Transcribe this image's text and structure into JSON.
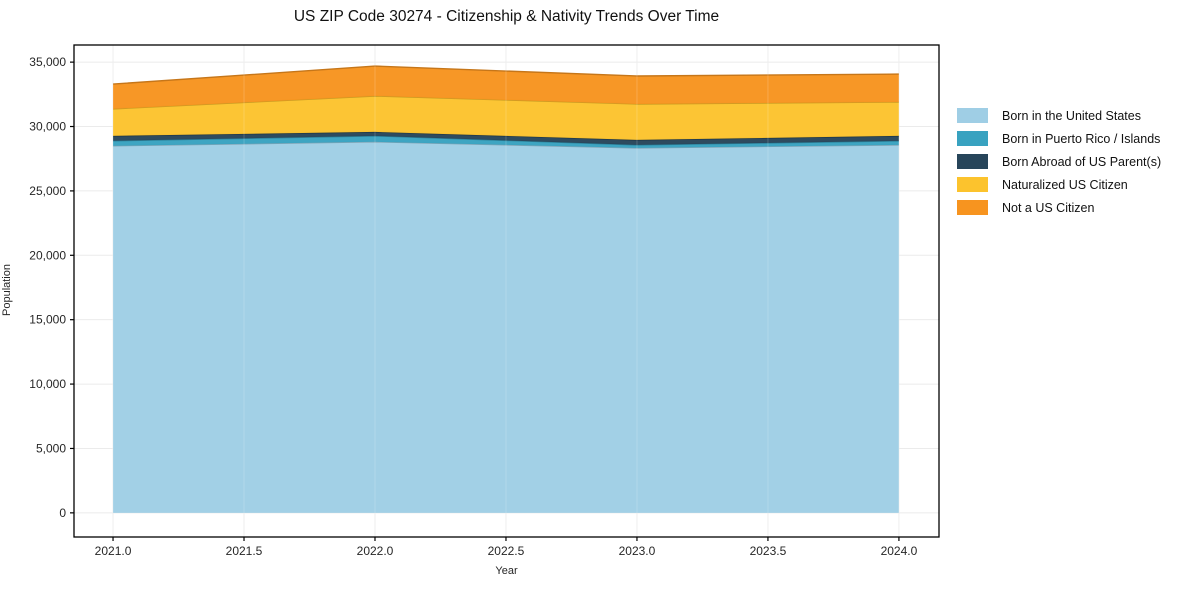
{
  "title": "US ZIP Code 30274 - Citizenship & Nativity Trends Over Time",
  "chart_data": {
    "type": "area",
    "stacked": true,
    "title": "US ZIP Code 30274 - Citizenship & Nativity Trends Over Time",
    "xlabel": "Year",
    "ylabel": "Population",
    "x": [
      2021,
      2022,
      2023,
      2024
    ],
    "series": [
      {
        "name": "Born in the United States",
        "color": "#9FCEE5",
        "values": [
          28500,
          28810,
          28340,
          28570
        ]
      },
      {
        "name": "Born in Puerto Rico / Islands",
        "color": "#38A2C0",
        "values": [
          390,
          460,
          230,
          310
        ]
      },
      {
        "name": "Born Abroad of US Parent(s)",
        "color": "#27455A",
        "values": [
          385,
          310,
          390,
          390
        ]
      },
      {
        "name": "Naturalized US Citizen",
        "color": "#FCC32D",
        "values": [
          2090,
          2790,
          2790,
          2630
        ]
      },
      {
        "name": "Not a US Citizen",
        "color": "#F7941F",
        "values": [
          1930,
          2320,
          2170,
          2170
        ]
      }
    ],
    "totals": [
      33295,
      34690,
      33920,
      34070
    ],
    "x_ticks": [
      2021.0,
      2021.5,
      2022.0,
      2022.5,
      2023.0,
      2023.5,
      2024.0
    ],
    "x_tick_labels": [
      "2021.0",
      "2021.5",
      "2022.0",
      "2022.5",
      "2023.0",
      "2023.5",
      "2024.0"
    ],
    "y_ticks": [
      0,
      5000,
      10000,
      15000,
      20000,
      25000,
      30000,
      35000
    ],
    "y_tick_labels": [
      "0",
      "5,000",
      "10,000",
      "15,000",
      "20,000",
      "25,000",
      "30,000",
      "35,000"
    ],
    "xlim": [
      2020.851,
      2024.153
    ],
    "ylim": [
      -1875,
      36330
    ],
    "grid": true,
    "grid_color": "#ebebeb",
    "spine_color": "#000000",
    "legend_position": "right"
  }
}
